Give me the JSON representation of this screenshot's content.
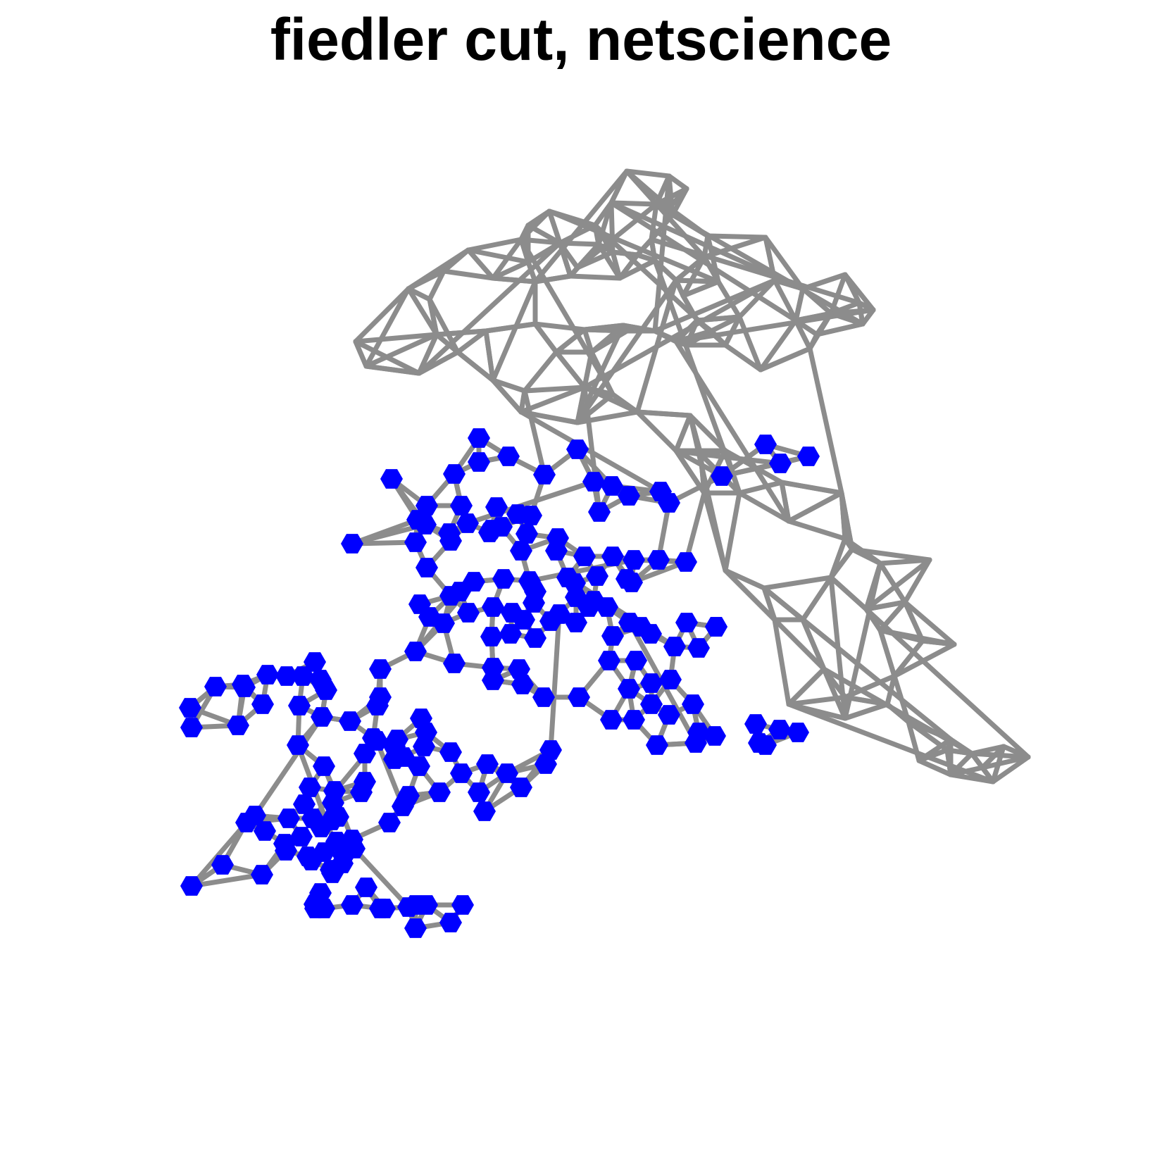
{
  "title": "fiedler cut, netscience",
  "graph": {
    "name": "netscience",
    "partition_method": "fiedler cut",
    "colors": {
      "edge": "#8c8c8c",
      "cut_side_node": "#0000ff",
      "background": "#ffffff"
    },
    "node_shape": "hexagon"
  }
}
